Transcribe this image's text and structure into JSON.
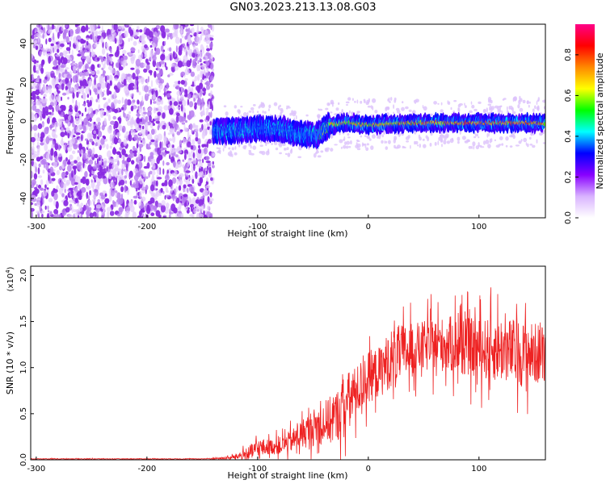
{
  "title": "GN03.2023.213.13.08.G03",
  "colorbar": {
    "label": "Normalized spectral amplitude",
    "ticks": [
      "0.0",
      "0.2",
      "0.4",
      "0.6",
      "0.8"
    ],
    "tick_values": [
      0.0,
      0.2,
      0.4,
      0.6,
      0.8
    ],
    "range": [
      0,
      0.95
    ],
    "colors": [
      "#ffffff",
      "#d9b3ff",
      "#8800ff",
      "#0000ff",
      "#00ffff",
      "#00ff00",
      "#ffff00",
      "#ff8800",
      "#ff0000",
      "#ff0088"
    ]
  },
  "chart_data": [
    {
      "type": "heatmap",
      "xlabel": "Height of straight line (km)",
      "ylabel": "Frequency (Hz)",
      "xlim": [
        -305,
        160
      ],
      "ylim": [
        -50,
        50
      ],
      "xticks": [
        -300,
        -200,
        -100,
        0,
        100
      ],
      "xtick_labels": [
        "-300",
        "-200",
        "-100",
        "0",
        "100"
      ],
      "yticks": [
        -40,
        -20,
        0,
        20,
        40
      ],
      "ytick_labels": [
        "-40",
        "-20",
        "0",
        "20",
        "40"
      ],
      "noise_region_x": [
        -305,
        -140
      ],
      "ridge": {
        "x": [
          -140,
          -120,
          -100,
          -80,
          -60,
          -45,
          -35,
          -20,
          0,
          40,
          80,
          120,
          160
        ],
        "freq": [
          -5,
          -5,
          -4,
          -4,
          -7,
          -7,
          -2,
          -1,
          -2,
          -1,
          -1,
          -1,
          -1
        ],
        "amplitude": [
          0.45,
          0.5,
          0.45,
          0.5,
          0.45,
          0.5,
          0.75,
          0.8,
          0.8,
          0.85,
          0.9,
          0.9,
          0.85
        ]
      },
      "colors": {
        "noise": "#8800ff",
        "signal_core": "#ff2200"
      }
    },
    {
      "type": "line",
      "xlabel": "Height of straight line (km)",
      "ylabel": "SNR (10 * v/v)",
      "y_multiplier_label": "(x10",
      "y_multiplier_exp": "4",
      "xlim": [
        -305,
        160
      ],
      "ylim": [
        0,
        2.1
      ],
      "xticks": [
        -300,
        -200,
        -100,
        0,
        100
      ],
      "xtick_labels": [
        "-300",
        "-200",
        "-100",
        "0",
        "100"
      ],
      "yticks": [
        0,
        0.5,
        1.0,
        1.5,
        2.0
      ],
      "ytick_labels": [
        "0.0",
        "0.5",
        "1.0",
        "1.5",
        "2.0"
      ],
      "series": [
        {
          "color": "#ee2222",
          "x": [
            -305,
            -200,
            -150,
            -125,
            -110,
            -100,
            -90,
            -80,
            -70,
            -60,
            -50,
            -40,
            -30,
            -20,
            -10,
            0,
            10,
            20,
            30,
            40,
            60,
            80,
            100,
            120,
            140,
            160
          ],
          "mean": [
            0.01,
            0.01,
            0.01,
            0.02,
            0.06,
            0.12,
            0.14,
            0.15,
            0.2,
            0.28,
            0.35,
            0.4,
            0.45,
            0.62,
            0.75,
            0.9,
            0.95,
            1.1,
            1.15,
            1.2,
            1.25,
            1.25,
            1.2,
            1.2,
            1.15,
            1.15
          ],
          "spread": [
            0.005,
            0.005,
            0.005,
            0.02,
            0.08,
            0.15,
            0.1,
            0.12,
            0.15,
            0.2,
            0.25,
            0.3,
            0.35,
            0.4,
            0.35,
            0.35,
            0.35,
            0.4,
            0.4,
            0.35,
            0.35,
            0.4,
            0.4,
            0.45,
            0.45,
            0.4
          ]
        }
      ]
    }
  ]
}
